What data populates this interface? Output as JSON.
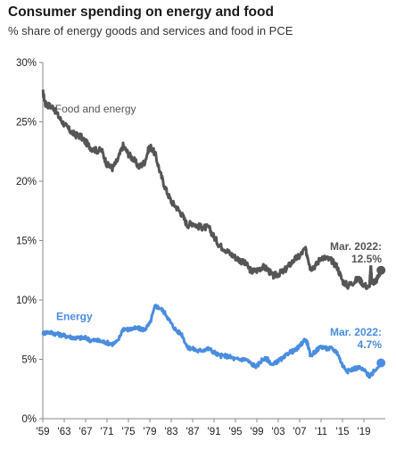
{
  "title": "Consumer spending on energy and food",
  "subtitle": "% share of energy goods and services and food in PCE",
  "colors": {
    "food_and_energy": "#555555",
    "energy": "#4a8de0",
    "axis": "#888888",
    "text": "#222222"
  },
  "chart_data": {
    "type": "line",
    "title": "Consumer spending on energy and food",
    "subtitle": "% share of energy goods and services and food in PCE",
    "xlabel": "",
    "ylabel": "",
    "xlim": [
      1959,
      2023
    ],
    "ylim": [
      0,
      30
    ],
    "y_tick_values": [
      0,
      5,
      10,
      15,
      20,
      25,
      30
    ],
    "y_tick_labels": [
      "0%",
      "5%",
      "10%",
      "15%",
      "20%",
      "25%",
      "30%"
    ],
    "x_tick_values": [
      1959,
      1963,
      1967,
      1971,
      1975,
      1979,
      1983,
      1987,
      1991,
      1995,
      1999,
      2003,
      2007,
      2011,
      2015,
      2019
    ],
    "x_tick_labels": [
      "'59",
      "'63",
      "'67",
      "'71",
      "'75",
      "'79",
      "'83",
      "'87",
      "'91",
      "'95",
      "'99",
      "'03",
      "'07",
      "'11",
      "'15",
      "'19"
    ],
    "grid": false,
    "series": [
      {
        "name": "Food and energy",
        "x": [
          1959,
          1959.5,
          1960,
          1961,
          1962,
          1963,
          1964,
          1965,
          1966,
          1967,
          1968,
          1969,
          1970,
          1971,
          1972,
          1973,
          1974,
          1975,
          1976,
          1977,
          1978,
          1979,
          1980,
          1981,
          1982,
          1983,
          1984,
          1985,
          1986,
          1987,
          1988,
          1989,
          1990,
          1991,
          1992,
          1993,
          1994,
          1995,
          1996,
          1997,
          1998,
          1999,
          2000,
          2001,
          2002,
          2003,
          2004,
          2005,
          2006,
          2007,
          2008,
          2008.5,
          2009,
          2010,
          2011,
          2012,
          2013,
          2014,
          2015,
          2016,
          2017,
          2018,
          2019,
          2020,
          2020.3,
          2020.5,
          2021,
          2021.5,
          2022.2
        ],
        "values": [
          27.5,
          26.5,
          26.4,
          26.2,
          25.4,
          24.8,
          24.3,
          23.9,
          23.8,
          23.3,
          22.8,
          22.6,
          22.6,
          21.4,
          21.1,
          21.8,
          23.0,
          22.3,
          21.8,
          21.2,
          21.6,
          23.0,
          22.3,
          20.6,
          19.3,
          18.3,
          17.8,
          17.2,
          16.3,
          16.5,
          16.2,
          16.1,
          16.1,
          15.3,
          14.6,
          14.3,
          13.9,
          13.6,
          13.3,
          13.0,
          12.4,
          12.5,
          12.8,
          12.6,
          12.0,
          12.2,
          12.4,
          12.9,
          13.4,
          13.7,
          14.3,
          13.7,
          12.7,
          12.9,
          13.6,
          13.5,
          13.3,
          12.8,
          11.6,
          11.2,
          11.5,
          11.8,
          11.3,
          11.0,
          12.8,
          11.6,
          11.5,
          11.8,
          12.5
        ]
      },
      {
        "name": "Energy",
        "x": [
          1959,
          1960,
          1961,
          1962,
          1963,
          1964,
          1965,
          1966,
          1967,
          1968,
          1969,
          1970,
          1971,
          1972,
          1973,
          1974,
          1975,
          1976,
          1977,
          1978,
          1979,
          1980,
          1981,
          1982,
          1983,
          1984,
          1985,
          1986,
          1987,
          1988,
          1989,
          1990,
          1991,
          1992,
          1993,
          1994,
          1995,
          1996,
          1997,
          1998,
          1999,
          2000,
          2001,
          2002,
          2003,
          2004,
          2005,
          2006,
          2007,
          2008,
          2008.5,
          2009,
          2010,
          2011,
          2012,
          2013,
          2014,
          2015,
          2016,
          2017,
          2018,
          2019,
          2020,
          2020.5,
          2021,
          2022.2
        ],
        "values": [
          7.2,
          7.3,
          7.2,
          7.1,
          7.0,
          6.9,
          6.8,
          6.8,
          6.8,
          6.6,
          6.6,
          6.5,
          6.4,
          6.3,
          6.5,
          7.6,
          7.5,
          7.6,
          7.6,
          7.5,
          8.0,
          9.5,
          9.3,
          8.8,
          8.0,
          7.4,
          7.1,
          6.0,
          5.9,
          5.7,
          5.8,
          5.9,
          5.6,
          5.3,
          5.3,
          5.2,
          5.0,
          5.0,
          5.0,
          4.6,
          4.4,
          5.0,
          5.0,
          4.5,
          4.9,
          5.1,
          5.6,
          5.7,
          6.1,
          6.7,
          6.3,
          5.3,
          5.7,
          6.1,
          5.9,
          5.9,
          5.6,
          4.5,
          4.0,
          4.2,
          4.3,
          4.1,
          3.6,
          3.7,
          4.1,
          4.7
        ]
      }
    ],
    "series_labels": [
      "Food  and energy",
      "Energy"
    ],
    "annotations": [
      {
        "line1": "Mar. 2022:",
        "line2": "12.5%",
        "series": "Food and energy",
        "x": 2022.2,
        "y": 12.5
      },
      {
        "line1": "Mar. 2022:",
        "line2": "4.7%",
        "series": "Energy",
        "x": 2022.2,
        "y": 4.7
      }
    ]
  }
}
